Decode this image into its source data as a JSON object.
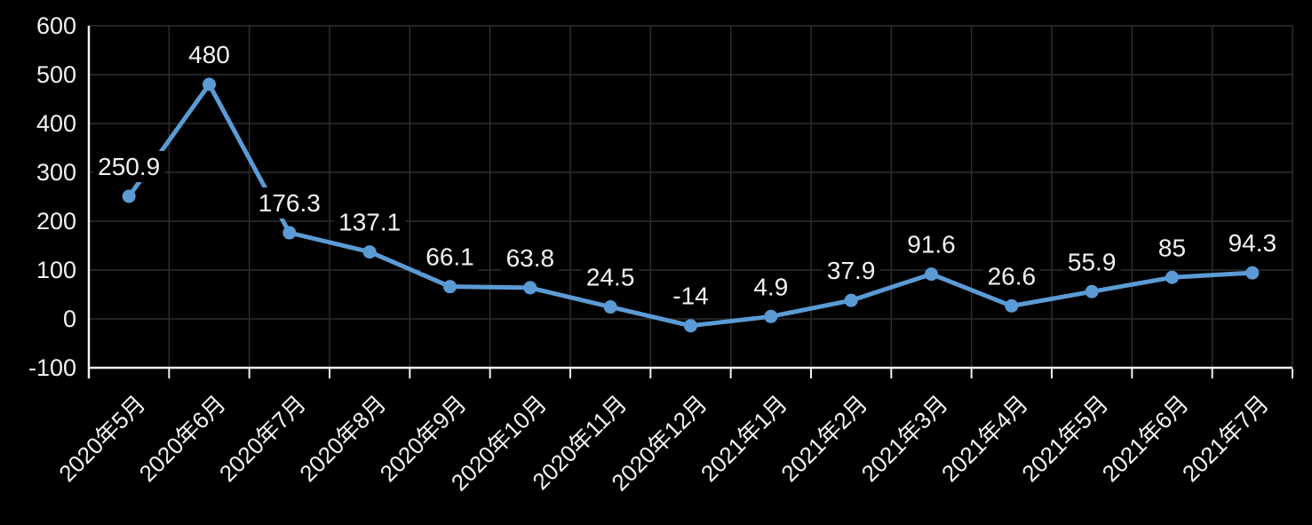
{
  "chart_data": {
    "type": "line",
    "title": "",
    "categories": [
      "2020年5月",
      "2020年6月",
      "2020年7月",
      "2020年8月",
      "2020年9月",
      "2020年10月",
      "2020年11月",
      "2020年12月",
      "2021年1月",
      "2021年2月",
      "2021年3月",
      "2021年4月",
      "2021年5月",
      "2021年6月",
      "2021年7月"
    ],
    "values": [
      250.9,
      480,
      176.3,
      137.1,
      66.1,
      63.8,
      24.5,
      -14,
      4.9,
      37.9,
      91.6,
      26.6,
      55.9,
      85,
      94.3
    ],
    "data_labels": [
      "250.9",
      "480",
      "176.3",
      "137.1",
      "66.1",
      "63.8",
      "24.5",
      "-14",
      "4.9",
      "37.9",
      "91.6",
      "26.6",
      "55.9",
      "85",
      "94.3"
    ],
    "xlabel": "",
    "ylabel": "",
    "ylim": [
      -100,
      600
    ],
    "ytick_step": 100,
    "y_tick_labels": [
      "600",
      "500",
      "400",
      "300",
      "200",
      "100",
      "0",
      "-100"
    ],
    "legend": "none",
    "grid": {
      "horizontal": true,
      "vertical": true
    },
    "marker": "circle",
    "x_label_rotation_deg": 45,
    "colors": {
      "series_line": "#5B9BD5",
      "marker": "#5B9BD5",
      "background": "#000000",
      "text": "#F2F2F2",
      "gridline": "#2D2D2D",
      "axis_line": "#F2F2F2"
    }
  }
}
